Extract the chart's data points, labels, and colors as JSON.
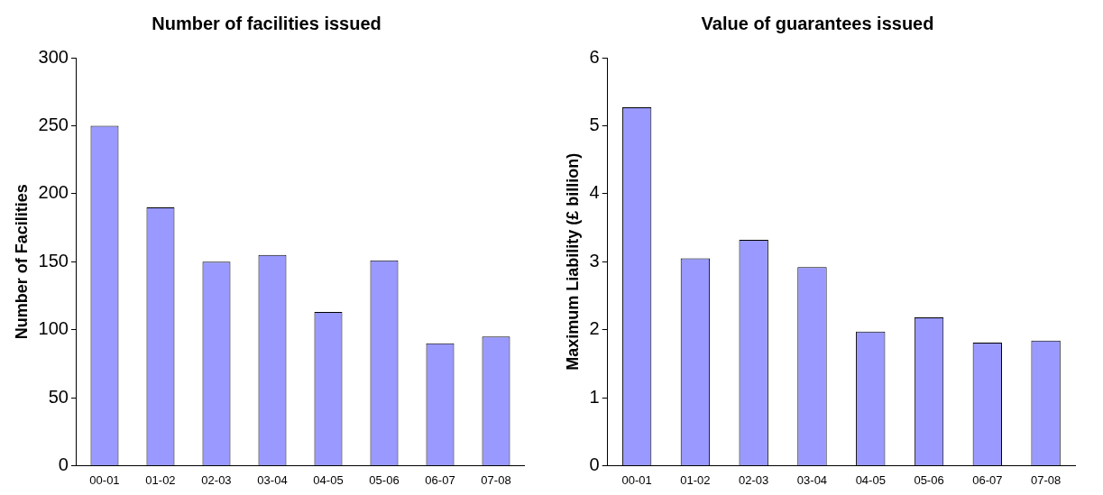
{
  "chart_data": [
    {
      "type": "bar",
      "title": "Number of facilities issued",
      "ylabel": "Number of Facilities",
      "categories": [
        "00-01",
        "01-02",
        "02-03",
        "03-04",
        "04-05",
        "05-06",
        "06-07",
        "07-08"
      ],
      "values": [
        250,
        190,
        150,
        155,
        113,
        151,
        90,
        95
      ],
      "color": "#9999ff",
      "ylim": [
        0,
        300
      ],
      "yticks": [
        0,
        50,
        100,
        150,
        200,
        250,
        300
      ]
    },
    {
      "type": "bar",
      "title": "Value of guarantees issued",
      "ylabel": "Maximum Liability (£ billion)",
      "categories": [
        "00-01",
        "01-02",
        "02-03",
        "03-04",
        "04-05",
        "05-06",
        "06-07",
        "07-08"
      ],
      "values": [
        5.27,
        3.05,
        3.32,
        2.92,
        1.97,
        2.18,
        1.81,
        1.84
      ],
      "color": "#9999ff",
      "ylim": [
        0,
        6
      ],
      "yticks": [
        0,
        1,
        2,
        3,
        4,
        5,
        6
      ]
    }
  ]
}
